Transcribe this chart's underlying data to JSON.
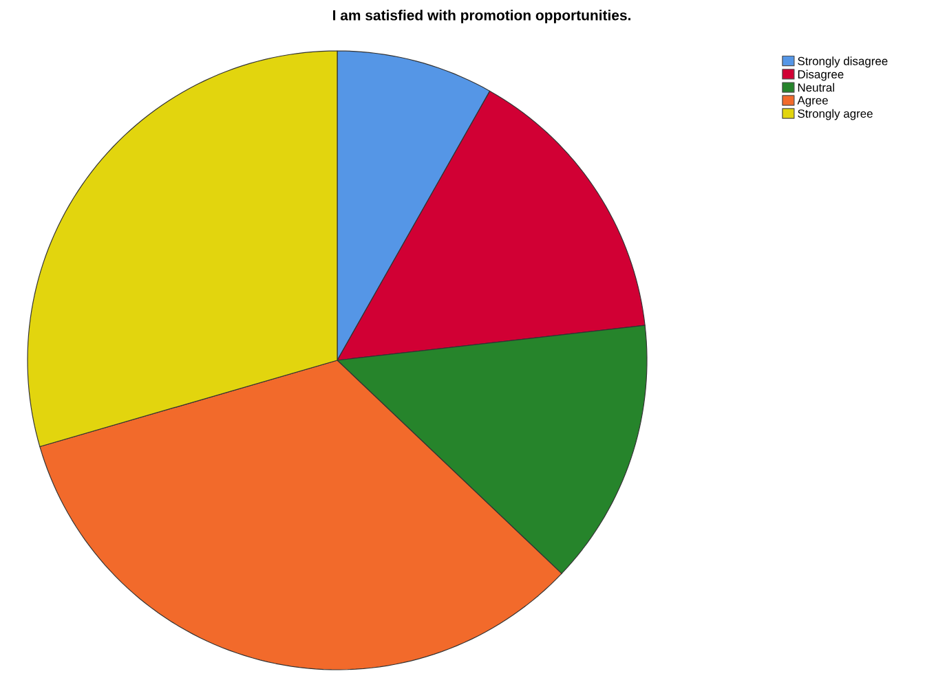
{
  "chart_data": {
    "type": "pie",
    "title": "I am satisfied with promotion opportunities.",
    "categories": [
      "Strongly disagree",
      "Disagree",
      "Neutral",
      "Agree",
      "Strongly agree"
    ],
    "values": [
      8.2,
      15.0,
      13.9,
      33.4,
      29.5
    ],
    "colors": [
      "#5596e6",
      "#d10034",
      "#26842b",
      "#f26a2b",
      "#e2d50e"
    ],
    "legend": "top right"
  }
}
